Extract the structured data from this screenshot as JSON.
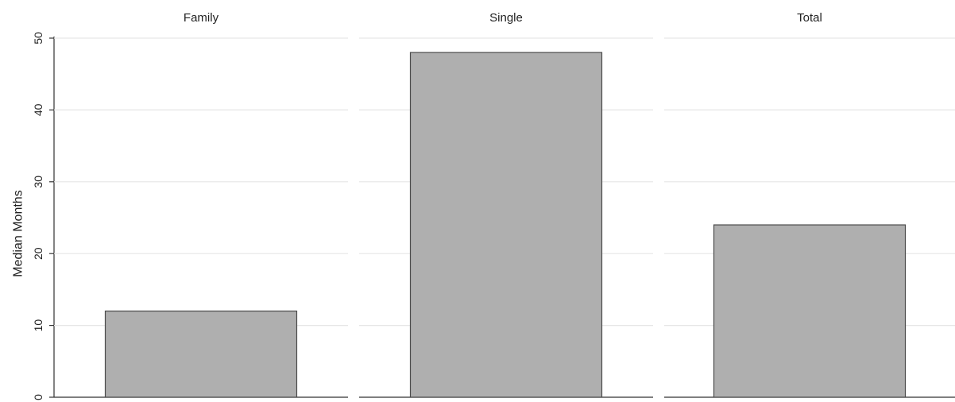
{
  "chart_data": {
    "type": "bar",
    "layout": "small-multiples",
    "ylabel": "Median Months",
    "ylim": [
      0,
      50
    ],
    "yticks": [
      0,
      10,
      20,
      30,
      40,
      50
    ],
    "grid": true,
    "panels": [
      {
        "title": "Family",
        "value": 12
      },
      {
        "title": "Single",
        "value": 48
      },
      {
        "title": "Total",
        "value": 24
      }
    ],
    "colors": {
      "bar_fill": "#afafaf",
      "bar_edge": "#4a4a4a",
      "grid": "#e6e6e6",
      "axis": "#333333"
    }
  }
}
